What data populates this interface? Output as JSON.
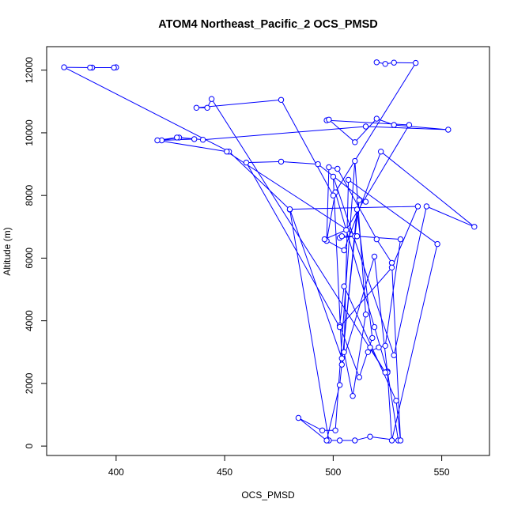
{
  "chart_data": {
    "type": "scatter",
    "title": "ATOM4 Northeast_Pacific_2 OCS_PMSD",
    "xlabel": "OCS_PMSD",
    "ylabel": "Altitude (m)",
    "xlim": [
      368,
      572
    ],
    "ylim": [
      -300,
      12750
    ],
    "xticks": [
      400,
      450,
      500,
      550
    ],
    "yticks": [
      0,
      2000,
      4000,
      6000,
      8000,
      10000,
      12000
    ],
    "xtick_labels": [
      "400",
      "450",
      "500",
      "550"
    ],
    "ytick_labels": [
      "0",
      "2000",
      "4000",
      "6000",
      "8000",
      "10000",
      "12000"
    ],
    "grid": false,
    "legend": "none",
    "series": [
      {
        "color": "#0000ff",
        "marker": "open-circle",
        "line": true,
        "x": [
          400,
          399,
          389,
          388,
          376,
          452,
          480,
          498,
          503,
          510,
          517,
          530,
          525,
          519,
          501,
          497,
          498,
          502,
          520,
          527,
          531,
          529,
          505,
          503,
          512,
          518,
          511,
          504,
          519,
          525,
          527,
          548,
          507,
          505,
          509,
          515,
          510,
          501,
          495,
          484,
          497,
          503,
          510,
          512,
          515,
          493,
          476,
          460,
          503,
          527,
          539,
          480,
          504,
          500,
          528,
          543,
          565,
          522,
          505,
          496,
          506,
          535,
          497,
          498,
          510,
          520,
          528,
          553,
          515,
          440,
          429,
          421,
          436,
          428,
          419,
          451,
          511,
          503,
          504,
          511,
          531,
          524,
          521,
          516,
          517,
          524,
          444,
          442,
          437,
          476,
          500,
          538,
          528,
          524,
          520
        ],
        "y": [
          12090,
          12080,
          12080,
          12080,
          12090,
          9400,
          7550,
          180,
          180,
          180,
          300,
          180,
          2380,
          3800,
          8100,
          6550,
          8900,
          8850,
          6600,
          5850,
          180,
          1450,
          5100,
          3850,
          2200,
          3450,
          7550,
          2600,
          6050,
          2350,
          180,
          6450,
          8500,
          3000,
          1600,
          4200,
          9100,
          500,
          500,
          900,
          180,
          1950,
          6700,
          7850,
          7800,
          9000,
          9080,
          9050,
          3800,
          5700,
          7650,
          7560,
          2800,
          8600,
          2900,
          7650,
          7000,
          9400,
          6250,
          6600,
          6900,
          10250,
          10400,
          10420,
          9700,
          10450,
          10250,
          10100,
          10200,
          9780,
          9850,
          9760,
          9800,
          9850,
          9760,
          9400,
          6700,
          6650,
          6700,
          6700,
          6600,
          3200,
          3150,
          3000,
          3150,
          2350,
          11080,
          10800,
          10800,
          11050,
          8000,
          12230,
          12240,
          12200,
          12250
        ]
      }
    ]
  }
}
